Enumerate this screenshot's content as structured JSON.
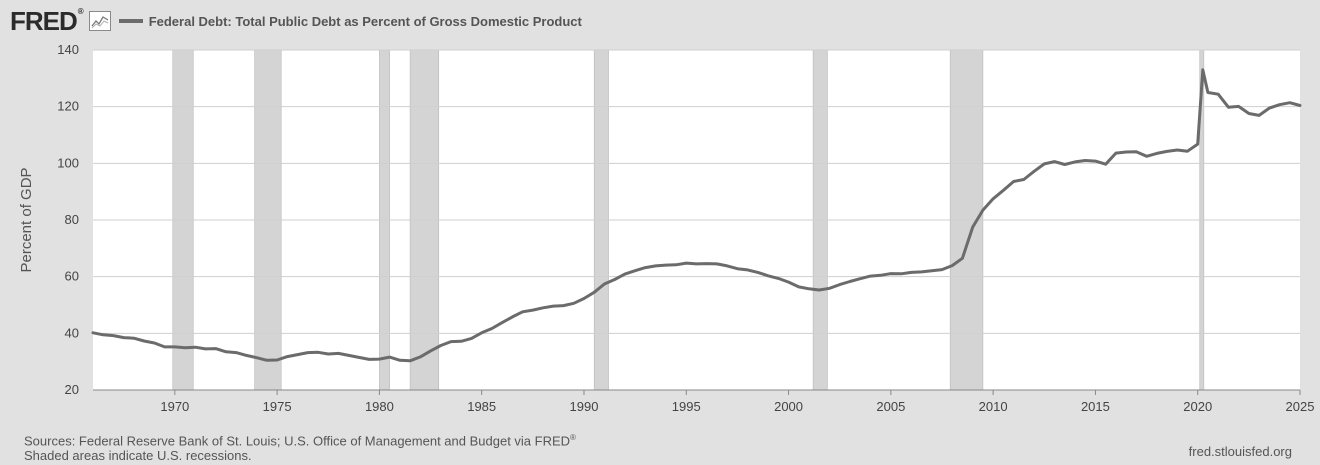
{
  "brand": {
    "logo_text": "FRED",
    "logo_mark": "®",
    "graph_icon": "line-graph-icon"
  },
  "footer": {
    "sources_text": "Sources: Federal Reserve Bank of St. Louis; U.S. Office of Management and Budget via FRED",
    "sources_mark": "®",
    "note": "Shaded areas indicate U.S. recessions.",
    "site": "fred.stlouisfed.org"
  },
  "colors": {
    "page_bg": "#e1e1e1",
    "plot_bg": "#ffffff",
    "line": "#6b6b6b",
    "recession": "#d4d4d4",
    "grid": "#cfcfcf"
  },
  "chart_data": {
    "type": "line",
    "title": "",
    "xlabel": "",
    "ylabel": "Percent of GDP",
    "xlim": [
      1966,
      2025
    ],
    "ylim": [
      20,
      140
    ],
    "xticks": [
      1970,
      1975,
      1980,
      1985,
      1990,
      1995,
      2000,
      2005,
      2010,
      2015,
      2020,
      2025
    ],
    "yticks": [
      20,
      40,
      60,
      80,
      100,
      120,
      140
    ],
    "grid": true,
    "legend_position": "top-left",
    "recessions": [
      [
        1969.9,
        1970.9
      ],
      [
        1973.9,
        1975.2
      ],
      [
        1980.0,
        1980.5
      ],
      [
        1981.5,
        1982.9
      ],
      [
        1990.5,
        1991.2
      ],
      [
        2001.2,
        2001.9
      ],
      [
        2007.9,
        2009.5
      ],
      [
        2020.1,
        2020.3
      ]
    ],
    "series": [
      {
        "name": "Federal Debt: Total Public Debt as Percent of Gross Domestic Product",
        "x": [
          1966.0,
          1966.5,
          1967.0,
          1967.5,
          1968.0,
          1968.5,
          1969.0,
          1969.5,
          1970.0,
          1970.5,
          1971.0,
          1971.5,
          1972.0,
          1972.5,
          1973.0,
          1973.5,
          1974.0,
          1974.5,
          1975.0,
          1975.5,
          1976.0,
          1976.5,
          1977.0,
          1977.5,
          1978.0,
          1978.5,
          1979.0,
          1979.5,
          1980.0,
          1980.5,
          1981.0,
          1981.5,
          1982.0,
          1982.5,
          1983.0,
          1983.5,
          1984.0,
          1984.5,
          1985.0,
          1985.5,
          1986.0,
          1986.5,
          1987.0,
          1987.5,
          1988.0,
          1988.5,
          1989.0,
          1989.5,
          1990.0,
          1990.5,
          1991.0,
          1991.5,
          1992.0,
          1992.5,
          1993.0,
          1993.5,
          1994.0,
          1994.5,
          1995.0,
          1995.5,
          1996.0,
          1996.5,
          1997.0,
          1997.5,
          1998.0,
          1998.5,
          1999.0,
          1999.5,
          2000.0,
          2000.5,
          2001.0,
          2001.5,
          2002.0,
          2002.5,
          2003.0,
          2003.5,
          2004.0,
          2004.5,
          2005.0,
          2005.5,
          2006.0,
          2006.5,
          2007.0,
          2007.5,
          2008.0,
          2008.5,
          2009.0,
          2009.5,
          2010.0,
          2010.5,
          2011.0,
          2011.5,
          2012.0,
          2012.5,
          2013.0,
          2013.5,
          2014.0,
          2014.5,
          2015.0,
          2015.5,
          2016.0,
          2016.5,
          2017.0,
          2017.5,
          2018.0,
          2018.5,
          2019.0,
          2019.5,
          2020.0,
          2020.25,
          2020.5,
          2021.0,
          2021.5,
          2022.0,
          2022.5,
          2023.0,
          2023.5,
          2024.0,
          2024.5,
          2025.0
        ],
        "values": [
          40.2,
          39.5,
          39.2,
          38.5,
          38.3,
          37.3,
          36.6,
          35.2,
          35.2,
          34.9,
          35.1,
          34.5,
          34.6,
          33.5,
          33.2,
          32.2,
          31.4,
          30.5,
          30.6,
          31.8,
          32.5,
          33.2,
          33.3,
          32.7,
          32.9,
          32.2,
          31.5,
          30.8,
          30.9,
          31.6,
          30.5,
          30.3,
          31.7,
          33.8,
          35.7,
          37.1,
          37.2,
          38.2,
          40.2,
          41.7,
          43.8,
          45.8,
          47.6,
          48.2,
          49.0,
          49.6,
          49.8,
          50.6,
          52.3,
          54.5,
          57.4,
          59.0,
          60.9,
          62.1,
          63.2,
          63.8,
          64.1,
          64.2,
          64.8,
          64.5,
          64.6,
          64.5,
          63.8,
          62.8,
          62.4,
          61.5,
          60.3,
          59.4,
          58.1,
          56.4,
          55.7,
          55.3,
          55.9,
          57.2,
          58.3,
          59.3,
          60.2,
          60.5,
          61.1,
          61.0,
          61.5,
          61.7,
          62.1,
          62.5,
          63.9,
          66.5,
          77.5,
          83.5,
          87.5,
          90.5,
          93.6,
          94.3,
          97.2,
          99.8,
          100.6,
          99.6,
          100.5,
          101.0,
          100.8,
          99.7,
          103.6,
          104.0,
          104.1,
          102.5,
          103.5,
          104.2,
          104.7,
          104.3,
          106.8,
          133.0,
          125.0,
          124.4,
          119.8,
          120.1,
          117.6,
          116.9,
          119.5,
          120.7,
          121.4,
          120.4
        ]
      }
    ]
  }
}
